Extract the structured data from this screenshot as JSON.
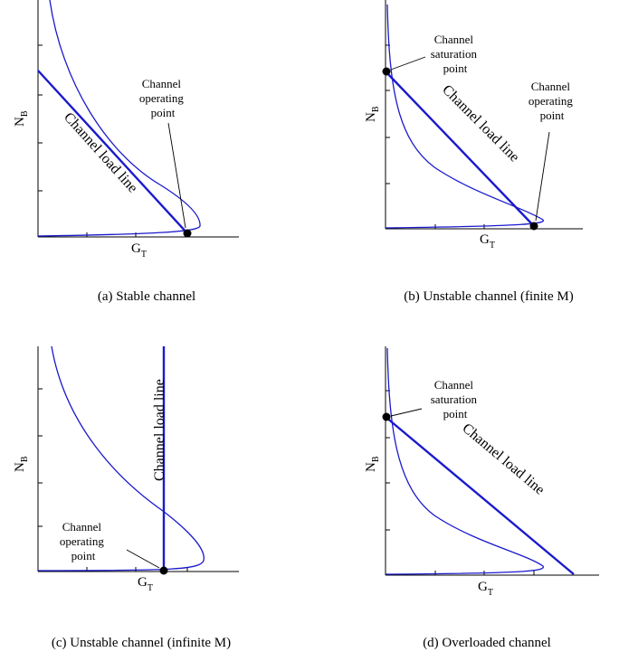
{
  "panels": [
    {
      "id": "a",
      "caption": "(a)  Stable channel",
      "x_label": "G",
      "x_label_sub": "T",
      "y_label": "N",
      "y_label_sub": "B",
      "load_line_label": "Channel load line",
      "operating_point_label": [
        "Channel",
        "operating",
        "point"
      ]
    },
    {
      "id": "b",
      "caption": "(b)  Unstable channel (finite M)",
      "x_label": "G",
      "x_label_sub": "T",
      "y_label": "N",
      "y_label_sub": "B",
      "load_line_label": "Channel load line",
      "saturation_point_label": [
        "Channel",
        "saturation",
        "point"
      ],
      "operating_point_label": [
        "Channel",
        "operating",
        "point"
      ]
    },
    {
      "id": "c",
      "caption": "(c)  Unstable channel (infinite M)",
      "x_label": "G",
      "x_label_sub": "T",
      "y_label": "N",
      "y_label_sub": "B",
      "load_line_label": "Channel load line",
      "operating_point_label": [
        "Channel",
        "operating",
        "point"
      ]
    },
    {
      "id": "d",
      "caption": "(d)  Overloaded channel",
      "x_label": "G",
      "x_label_sub": "T",
      "y_label": "N",
      "y_label_sub": "B",
      "load_line_label": "Channel load line",
      "saturation_point_label": [
        "Channel",
        "saturation",
        "point"
      ]
    }
  ],
  "colors": {
    "curve": "#1a1acc",
    "load_line": "#1a1acc",
    "point": "#000000"
  }
}
